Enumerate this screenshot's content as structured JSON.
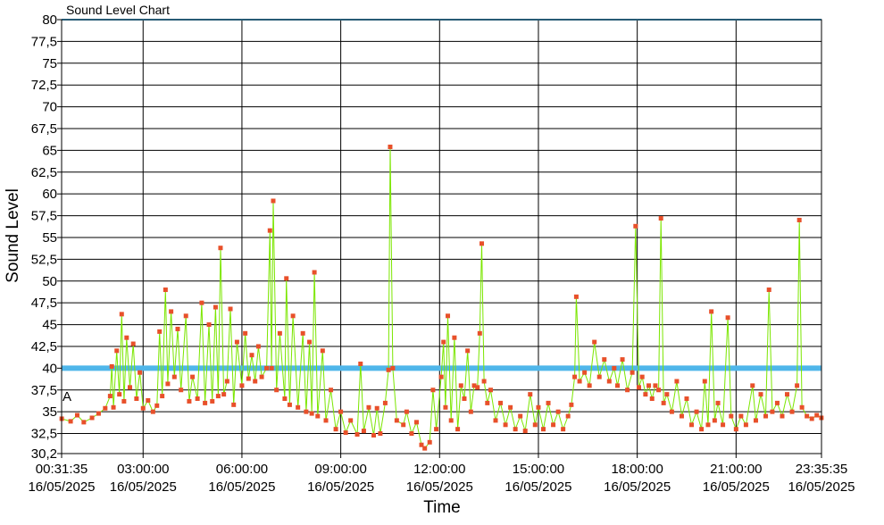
{
  "chart_data": {
    "type": "line",
    "title": "Sound Level Chart",
    "xlabel": "Time",
    "ylabel": "Sound Level",
    "ylim": [
      30.2,
      80
    ],
    "xlim_hours": [
      0.5264,
      23.5931
    ],
    "grid": true,
    "y_ticks": [
      "30,2",
      "32,5",
      "35",
      "37,5",
      "40",
      "42,5",
      "45",
      "47,5",
      "50",
      "52,5",
      "55",
      "57,5",
      "60",
      "62,5",
      "65",
      "67,5",
      "70",
      "72,5",
      "75",
      "77,5",
      "80"
    ],
    "x_ticks": [
      {
        "time": "00:31:35",
        "date": "16/05/2025"
      },
      {
        "time": "03:00:00",
        "date": "16/05/2025"
      },
      {
        "time": "06:00:00",
        "date": "16/05/2025"
      },
      {
        "time": "09:00:00",
        "date": "16/05/2025"
      },
      {
        "time": "12:00:00",
        "date": "16/05/2025"
      },
      {
        "time": "15:00:00",
        "date": "16/05/2025"
      },
      {
        "time": "18:00:00",
        "date": "16/05/2025"
      },
      {
        "time": "21:00:00",
        "date": "16/05/2025"
      },
      {
        "time": "23:35:35",
        "date": "16/05/2025"
      }
    ],
    "threshold": {
      "value": 40,
      "color": "#4fb6ea"
    },
    "marker_label": "A",
    "series": [
      {
        "color": "#7be600",
        "marker_color": "#e8502a",
        "points": [
          [
            0.53,
            34.2
          ],
          [
            0.8,
            33.9
          ],
          [
            1.0,
            34.6
          ],
          [
            1.2,
            33.8
          ],
          [
            1.45,
            34.3
          ],
          [
            1.65,
            34.8
          ],
          [
            1.85,
            35.4
          ],
          [
            2.0,
            36.8
          ],
          [
            2.05,
            40.2
          ],
          [
            2.1,
            35.5
          ],
          [
            2.2,
            42.0
          ],
          [
            2.28,
            37.0
          ],
          [
            2.35,
            46.2
          ],
          [
            2.42,
            36.2
          ],
          [
            2.5,
            43.5
          ],
          [
            2.6,
            37.8
          ],
          [
            2.7,
            42.8
          ],
          [
            2.8,
            36.5
          ],
          [
            2.9,
            39.5
          ],
          [
            3.0,
            35.4
          ],
          [
            3.15,
            36.3
          ],
          [
            3.3,
            35.0
          ],
          [
            3.42,
            35.7
          ],
          [
            3.5,
            44.2
          ],
          [
            3.58,
            36.8
          ],
          [
            3.68,
            49.0
          ],
          [
            3.75,
            38.2
          ],
          [
            3.85,
            46.5
          ],
          [
            3.95,
            39.0
          ],
          [
            4.05,
            44.5
          ],
          [
            4.15,
            37.5
          ],
          [
            4.3,
            46.0
          ],
          [
            4.4,
            36.2
          ],
          [
            4.5,
            39.0
          ],
          [
            4.65,
            36.5
          ],
          [
            4.78,
            47.5
          ],
          [
            4.88,
            36.0
          ],
          [
            5.0,
            45.0
          ],
          [
            5.1,
            36.2
          ],
          [
            5.2,
            47.0
          ],
          [
            5.28,
            36.8
          ],
          [
            5.35,
            53.8
          ],
          [
            5.45,
            37.0
          ],
          [
            5.55,
            38.5
          ],
          [
            5.65,
            46.8
          ],
          [
            5.75,
            35.8
          ],
          [
            5.85,
            43.0
          ],
          [
            6.0,
            38.0
          ],
          [
            6.1,
            44.0
          ],
          [
            6.2,
            38.8
          ],
          [
            6.3,
            41.5
          ],
          [
            6.4,
            38.5
          ],
          [
            6.5,
            42.5
          ],
          [
            6.6,
            39.0
          ],
          [
            6.75,
            40.0
          ],
          [
            6.85,
            55.8
          ],
          [
            6.9,
            40.0
          ],
          [
            6.95,
            59.2
          ],
          [
            7.05,
            37.5
          ],
          [
            7.15,
            44.0
          ],
          [
            7.3,
            36.5
          ],
          [
            7.35,
            50.3
          ],
          [
            7.45,
            35.8
          ],
          [
            7.55,
            46.0
          ],
          [
            7.7,
            35.5
          ],
          [
            7.85,
            44.0
          ],
          [
            7.95,
            35.0
          ],
          [
            8.05,
            43.0
          ],
          [
            8.12,
            34.8
          ],
          [
            8.2,
            51.0
          ],
          [
            8.3,
            34.5
          ],
          [
            8.45,
            42.0
          ],
          [
            8.55,
            34.0
          ],
          [
            8.7,
            37.5
          ],
          [
            8.85,
            33.0
          ],
          [
            9.0,
            35.0
          ],
          [
            9.15,
            32.6
          ],
          [
            9.3,
            34.0
          ],
          [
            9.5,
            32.4
          ],
          [
            9.6,
            40.5
          ],
          [
            9.7,
            32.8
          ],
          [
            9.85,
            35.5
          ],
          [
            10.0,
            32.3
          ],
          [
            10.1,
            35.4
          ],
          [
            10.2,
            32.5
          ],
          [
            10.35,
            36.0
          ],
          [
            10.45,
            39.8
          ],
          [
            10.5,
            65.4
          ],
          [
            10.58,
            40.0
          ],
          [
            10.7,
            34.0
          ],
          [
            10.9,
            33.5
          ],
          [
            11.0,
            35.0
          ],
          [
            11.15,
            32.5
          ],
          [
            11.3,
            33.8
          ],
          [
            11.45,
            31.2
          ],
          [
            11.55,
            30.8
          ],
          [
            11.7,
            31.5
          ],
          [
            11.8,
            37.5
          ],
          [
            11.9,
            33.0
          ],
          [
            12.05,
            39.0
          ],
          [
            12.12,
            43.0
          ],
          [
            12.18,
            35.5
          ],
          [
            12.25,
            46.0
          ],
          [
            12.35,
            34.0
          ],
          [
            12.45,
            43.5
          ],
          [
            12.55,
            33.0
          ],
          [
            12.65,
            38.0
          ],
          [
            12.75,
            36.5
          ],
          [
            12.85,
            42.0
          ],
          [
            12.95,
            35.0
          ],
          [
            13.05,
            38.0
          ],
          [
            13.15,
            37.8
          ],
          [
            13.22,
            44.0
          ],
          [
            13.28,
            54.3
          ],
          [
            13.35,
            38.5
          ],
          [
            13.45,
            36.0
          ],
          [
            13.55,
            37.5
          ],
          [
            13.7,
            34.0
          ],
          [
            13.85,
            36.0
          ],
          [
            14.0,
            33.5
          ],
          [
            14.15,
            35.5
          ],
          [
            14.3,
            33.0
          ],
          [
            14.45,
            34.5
          ],
          [
            14.6,
            32.8
          ],
          [
            14.75,
            37.0
          ],
          [
            14.9,
            33.5
          ],
          [
            15.0,
            35.5
          ],
          [
            15.15,
            33.0
          ],
          [
            15.3,
            36.0
          ],
          [
            15.45,
            33.5
          ],
          [
            15.6,
            35.0
          ],
          [
            15.75,
            33.0
          ],
          [
            15.9,
            34.5
          ],
          [
            16.0,
            35.8
          ],
          [
            16.1,
            39.0
          ],
          [
            16.15,
            48.2
          ],
          [
            16.25,
            38.5
          ],
          [
            16.4,
            39.5
          ],
          [
            16.55,
            38.0
          ],
          [
            16.7,
            43.0
          ],
          [
            16.85,
            39.0
          ],
          [
            17.0,
            41.0
          ],
          [
            17.15,
            38.5
          ],
          [
            17.3,
            40.0
          ],
          [
            17.4,
            38.0
          ],
          [
            17.55,
            41.0
          ],
          [
            17.7,
            37.5
          ],
          [
            17.85,
            39.5
          ],
          [
            17.95,
            56.3
          ],
          [
            18.05,
            37.8
          ],
          [
            18.15,
            39.0
          ],
          [
            18.25,
            37.0
          ],
          [
            18.35,
            38.0
          ],
          [
            18.45,
            36.5
          ],
          [
            18.55,
            38.0
          ],
          [
            18.65,
            37.5
          ],
          [
            18.72,
            57.2
          ],
          [
            18.8,
            36.0
          ],
          [
            18.9,
            37.0
          ],
          [
            19.05,
            35.0
          ],
          [
            19.2,
            38.5
          ],
          [
            19.35,
            34.5
          ],
          [
            19.5,
            36.5
          ],
          [
            19.65,
            33.5
          ],
          [
            19.8,
            35.0
          ],
          [
            19.95,
            33.0
          ],
          [
            20.05,
            38.5
          ],
          [
            20.15,
            33.5
          ],
          [
            20.25,
            46.5
          ],
          [
            20.35,
            34.0
          ],
          [
            20.45,
            36.0
          ],
          [
            20.6,
            33.5
          ],
          [
            20.75,
            45.8
          ],
          [
            20.85,
            34.5
          ],
          [
            21.0,
            33.0
          ],
          [
            21.15,
            34.5
          ],
          [
            21.3,
            33.5
          ],
          [
            21.5,
            38.0
          ],
          [
            21.6,
            34.0
          ],
          [
            21.75,
            37.0
          ],
          [
            21.9,
            34.5
          ],
          [
            22.0,
            49.0
          ],
          [
            22.1,
            35.0
          ],
          [
            22.25,
            36.0
          ],
          [
            22.4,
            34.5
          ],
          [
            22.55,
            37.0
          ],
          [
            22.7,
            35.0
          ],
          [
            22.85,
            38.0
          ],
          [
            22.92,
            57.0
          ],
          [
            23.0,
            35.5
          ],
          [
            23.15,
            34.5
          ],
          [
            23.3,
            34.2
          ],
          [
            23.45,
            34.6
          ],
          [
            23.59,
            34.3
          ]
        ]
      }
    ]
  }
}
